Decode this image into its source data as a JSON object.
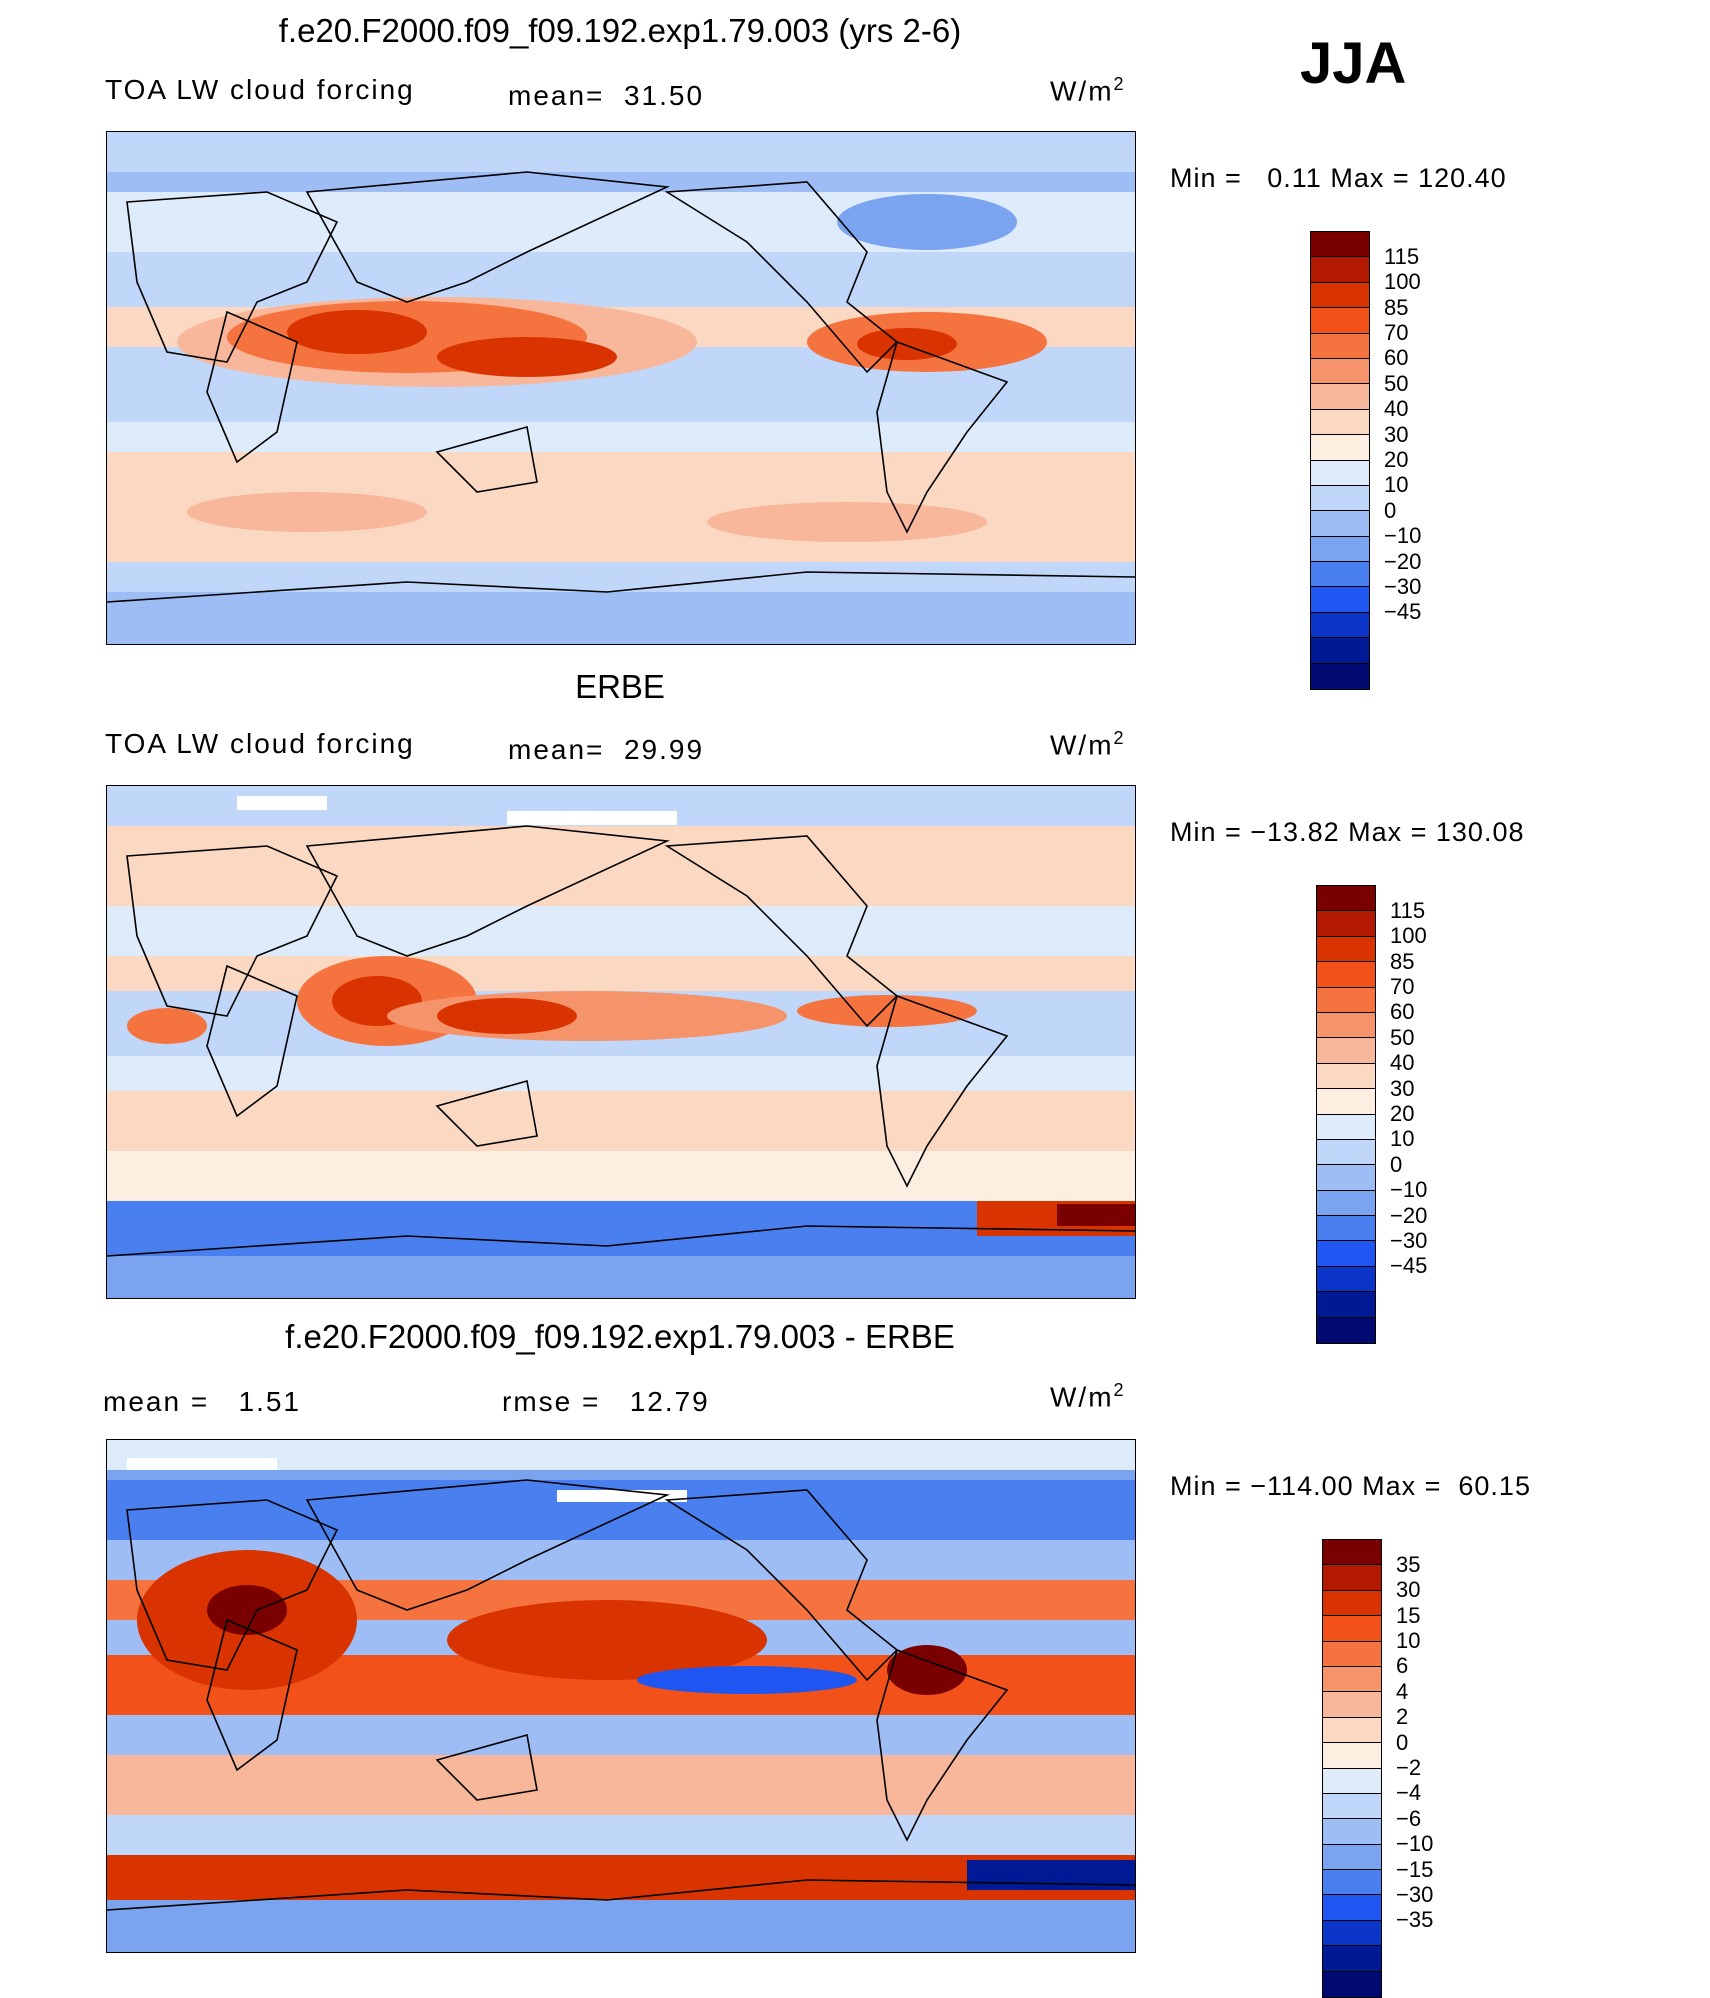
{
  "season": "JJA",
  "panels": [
    {
      "title": "f.e20.F2000.f09_f09.192.exp1.79.003 (yrs 2-6)",
      "left_label": "TOA LW cloud forcing",
      "mid_label": "mean=  31.50",
      "units": "W/m",
      "units_sup": "2",
      "minmax": "Min =   0.11 Max = 120.40",
      "colorbar": {
        "labels": [
          "115",
          "100",
          "85",
          "70",
          "60",
          "50",
          "40",
          "30",
          "20",
          "10",
          "0",
          "−10",
          "−20",
          "−30",
          "−45"
        ],
        "colors": [
          "#7a0000",
          "#b31900",
          "#d93300",
          "#f2521a",
          "#f5733f",
          "#f5946b",
          "#f8b79a",
          "#fbd8c2",
          "#fcefe2",
          "#deebfb",
          "#c0d7f9",
          "#9fbdf5",
          "#7aa3f0",
          "#4a7ff0",
          "#1f55f0",
          "#0a35c8",
          "#001a95",
          "#000a70"
        ]
      }
    },
    {
      "title": "ERBE",
      "left_label": "TOA LW cloud forcing",
      "mid_label": "mean=  29.99",
      "units": "W/m",
      "units_sup": "2",
      "minmax": "Min = −13.82 Max = 130.08",
      "colorbar": {
        "labels": [
          "115",
          "100",
          "85",
          "70",
          "60",
          "50",
          "40",
          "30",
          "20",
          "10",
          "0",
          "−10",
          "−20",
          "−30",
          "−45"
        ],
        "colors": [
          "#7a0000",
          "#b31900",
          "#d93300",
          "#f2521a",
          "#f5733f",
          "#f5946b",
          "#f8b79a",
          "#fbd8c2",
          "#fcefe2",
          "#deebfb",
          "#c0d7f9",
          "#9fbdf5",
          "#7aa3f0",
          "#4a7ff0",
          "#1f55f0",
          "#0a35c8",
          "#001a95",
          "#000a70"
        ]
      }
    },
    {
      "title": "f.e20.F2000.f09_f09.192.exp1.79.003 - ERBE",
      "left_label": "mean =   1.51",
      "mid_label": "rmse =   12.79",
      "units": "W/m",
      "units_sup": "2",
      "minmax": "Min = −114.00 Max =  60.15",
      "colorbar": {
        "labels": [
          "35",
          "30",
          "15",
          "10",
          "6",
          "4",
          "2",
          "0",
          "−2",
          "−4",
          "−6",
          "−10",
          "−15",
          "−30",
          "−35"
        ],
        "colors": [
          "#7a0000",
          "#b31900",
          "#d93300",
          "#f2521a",
          "#f5733f",
          "#f5946b",
          "#f8b79a",
          "#fbd8c2",
          "#fcefe2",
          "#deebfb",
          "#c0d7f9",
          "#9fbdf5",
          "#7aa3f0",
          "#4a7ff0",
          "#1f55f0",
          "#0a35c8",
          "#001a95",
          "#000a70"
        ]
      }
    }
  ]
}
